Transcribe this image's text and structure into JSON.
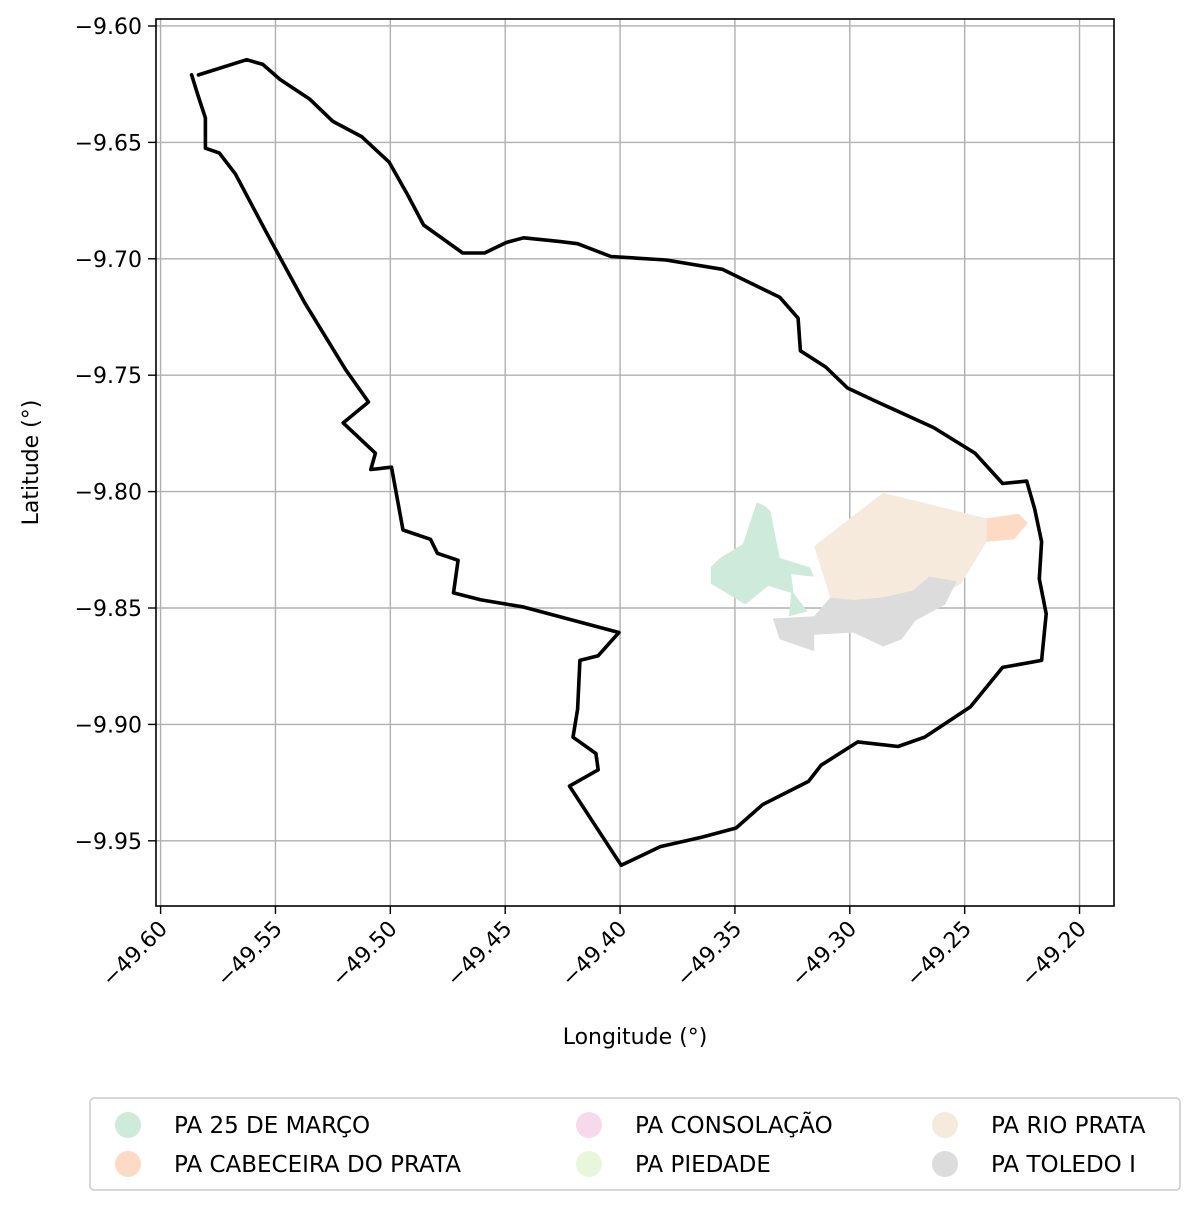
{
  "chart_data": {
    "type": "map",
    "xlabel": "Longitude (°)",
    "ylabel": "Latitude (°)",
    "xlim": [
      -49.602,
      -49.185
    ],
    "ylim": [
      -9.978,
      -9.597
    ],
    "x_ticks": [
      {
        "value": -49.6,
        "label": "−49.60"
      },
      {
        "value": -49.55,
        "label": "−49.55"
      },
      {
        "value": -49.5,
        "label": "−49.50"
      },
      {
        "value": -49.45,
        "label": "−49.45"
      },
      {
        "value": -49.4,
        "label": "−49.40"
      },
      {
        "value": -49.35,
        "label": "−49.35"
      },
      {
        "value": -49.3,
        "label": "−49.30"
      },
      {
        "value": -49.25,
        "label": "−49.25"
      },
      {
        "value": -49.2,
        "label": "−49.20"
      }
    ],
    "y_ticks": [
      {
        "value": -9.6,
        "label": "−9.60"
      },
      {
        "value": -9.65,
        "label": "−9.65"
      },
      {
        "value": -9.7,
        "label": "−9.70"
      },
      {
        "value": -9.75,
        "label": "−9.75"
      },
      {
        "value": -9.8,
        "label": "−9.80"
      },
      {
        "value": -9.85,
        "label": "−9.85"
      },
      {
        "value": -9.9,
        "label": "−9.90"
      },
      {
        "value": -9.95,
        "label": "−9.95"
      }
    ],
    "grid": true,
    "legend_position": "bottom",
    "boundary": {
      "color": "#000000",
      "coords": [
        [
          -49.5835,
          -9.621
        ],
        [
          -49.5625,
          -9.6145
        ],
        [
          -49.5555,
          -9.6165
        ],
        [
          -49.548,
          -9.623
        ],
        [
          -49.535,
          -9.6315
        ],
        [
          -49.525,
          -9.641
        ],
        [
          -49.5125,
          -9.6475
        ],
        [
          -49.5005,
          -9.6585
        ],
        [
          -49.4925,
          -9.6725
        ],
        [
          -49.4855,
          -9.6855
        ],
        [
          -49.4685,
          -9.6975
        ],
        [
          -49.459,
          -9.6975
        ],
        [
          -49.4495,
          -9.693
        ],
        [
          -49.442,
          -9.691
        ],
        [
          -49.427,
          -9.6925
        ],
        [
          -49.4185,
          -9.6935
        ],
        [
          -49.404,
          -9.699
        ],
        [
          -49.38,
          -9.7005
        ],
        [
          -49.3555,
          -9.7045
        ],
        [
          -49.3305,
          -9.7165
        ],
        [
          -49.3225,
          -9.7255
        ],
        [
          -49.3215,
          -9.7395
        ],
        [
          -49.3105,
          -9.7465
        ],
        [
          -49.301,
          -9.7555
        ],
        [
          -49.288,
          -9.7615
        ],
        [
          -49.2635,
          -9.7725
        ],
        [
          -49.2455,
          -9.7835
        ],
        [
          -49.2335,
          -9.7965
        ],
        [
          -49.223,
          -9.7955
        ],
        [
          -49.2195,
          -9.8075
        ],
        [
          -49.2165,
          -9.8215
        ],
        [
          -49.2175,
          -9.8375
        ],
        [
          -49.2145,
          -9.8525
        ],
        [
          -49.2165,
          -9.8725
        ],
        [
          -49.2335,
          -9.8755
        ],
        [
          -49.2475,
          -9.8925
        ],
        [
          -49.2675,
          -9.9055
        ],
        [
          -49.279,
          -9.9095
        ],
        [
          -49.2965,
          -9.9075
        ],
        [
          -49.3125,
          -9.9175
        ],
        [
          -49.318,
          -9.9245
        ],
        [
          -49.338,
          -9.9345
        ],
        [
          -49.3495,
          -9.9445
        ],
        [
          -49.3645,
          -9.9485
        ],
        [
          -49.3825,
          -9.9525
        ],
        [
          -49.3995,
          -9.9605
        ],
        [
          -49.422,
          -9.9265
        ],
        [
          -49.4095,
          -9.9195
        ],
        [
          -49.4105,
          -9.9125
        ],
        [
          -49.4205,
          -9.9055
        ],
        [
          -49.4185,
          -9.8935
        ],
        [
          -49.4175,
          -9.8725
        ],
        [
          -49.4095,
          -9.8705
        ],
        [
          -49.4005,
          -9.8605
        ],
        [
          -49.4425,
          -9.8495
        ],
        [
          -49.4605,
          -9.8465
        ],
        [
          -49.4725,
          -9.8435
        ],
        [
          -49.4705,
          -9.8295
        ],
        [
          -49.4795,
          -9.8265
        ],
        [
          -49.4825,
          -9.8205
        ],
        [
          -49.4945,
          -9.8165
        ],
        [
          -49.4995,
          -9.7895
        ],
        [
          -49.5085,
          -9.7905
        ],
        [
          -49.5065,
          -9.7835
        ],
        [
          -49.5205,
          -9.7705
        ],
        [
          -49.5095,
          -9.7615
        ],
        [
          -49.5195,
          -9.7475
        ],
        [
          -49.5375,
          -9.7185
        ],
        [
          -49.5535,
          -9.6895
        ],
        [
          -49.5675,
          -9.6635
        ],
        [
          -49.5745,
          -9.6545
        ],
        [
          -49.5805,
          -9.6525
        ],
        [
          -49.5805,
          -9.6395
        ],
        [
          -49.5835,
          -9.6305
        ],
        [
          -49.5865,
          -9.621
        ]
      ]
    },
    "series": [
      {
        "name": "PA 25 DE MARÇO",
        "color": "#cdeadb",
        "coords": [
          [
            -49.3405,
            -9.8045
          ],
          [
            -49.3365,
            -9.8065
          ],
          [
            -49.3345,
            -9.8085
          ],
          [
            -49.3305,
            -9.8285
          ],
          [
            -49.3175,
            -9.8325
          ],
          [
            -49.3155,
            -9.8365
          ],
          [
            -49.3255,
            -9.8355
          ],
          [
            -49.3245,
            -9.8435
          ],
          [
            -49.3185,
            -9.8515
          ],
          [
            -49.3265,
            -9.8535
          ],
          [
            -49.3255,
            -9.8435
          ],
          [
            -49.3355,
            -9.8405
          ],
          [
            -49.3455,
            -9.8485
          ],
          [
            -49.3505,
            -9.8455
          ],
          [
            -49.3555,
            -9.8425
          ],
          [
            -49.3605,
            -9.8395
          ],
          [
            -49.3605,
            -9.8325
          ],
          [
            -49.3565,
            -9.8285
          ],
          [
            -49.3465,
            -9.8225
          ]
        ]
      },
      {
        "name": "PA CABECEIRA DO PRATA",
        "color": "#fddac3",
        "coords": [
          [
            -49.2405,
            -9.8115
          ],
          [
            -49.2265,
            -9.8095
          ],
          [
            -49.2225,
            -9.8135
          ],
          [
            -49.2285,
            -9.8205
          ],
          [
            -49.2405,
            -9.8215
          ]
        ]
      },
      {
        "name": "PA CONSOLAÇÃO",
        "color": "#f6d9ea",
        "coords": []
      },
      {
        "name": "PA PIEDADE",
        "color": "#eaf6d9",
        "coords": []
      },
      {
        "name": "PA RIO PRATA",
        "color": "#f6eadc",
        "coords": [
          [
            -49.3155,
            -9.8235
          ],
          [
            -49.2855,
            -9.8005
          ],
          [
            -49.2405,
            -9.8115
          ],
          [
            -49.2405,
            -9.8215
          ],
          [
            -49.2515,
            -9.8395
          ],
          [
            -49.2605,
            -9.8445
          ],
          [
            -49.2755,
            -9.8455
          ],
          [
            -49.2985,
            -9.8465
          ],
          [
            -49.3085,
            -9.8455
          ]
        ]
      },
      {
        "name": "PA TOLEDO I",
        "color": "#dcdcdc",
        "coords": [
          [
            -49.3085,
            -9.8455
          ],
          [
            -49.2985,
            -9.8465
          ],
          [
            -49.2855,
            -9.8455
          ],
          [
            -49.2725,
            -9.8425
          ],
          [
            -49.2655,
            -9.8365
          ],
          [
            -49.2535,
            -9.8385
          ],
          [
            -49.2585,
            -9.8485
          ],
          [
            -49.2715,
            -9.8555
          ],
          [
            -49.2775,
            -9.8635
          ],
          [
            -49.2855,
            -9.8665
          ],
          [
            -49.2985,
            -9.8605
          ],
          [
            -49.3155,
            -9.8615
          ],
          [
            -49.3155,
            -9.8685
          ],
          [
            -49.3305,
            -9.8635
          ],
          [
            -49.3335,
            -9.8545
          ],
          [
            -49.3155,
            -9.8535
          ]
        ]
      }
    ]
  }
}
